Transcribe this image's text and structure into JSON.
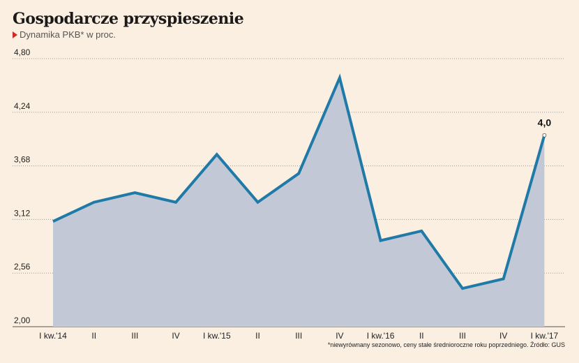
{
  "title": "Gospodarcze przyspieszenie",
  "subtitle": "Dynamika PKB* w proc.",
  "footnote": "*niewyrównany sezonowo, ceny stałe średnioroczne roku poprzedniego. Źródło: GUS",
  "colors": {
    "line": "#1f7aa8",
    "area": "#c3c8d6",
    "background": "#faefe1",
    "marker": "#d4252a"
  },
  "chart_data": {
    "type": "area",
    "categories": [
      "I kw.'14",
      "II",
      "III",
      "IV",
      "I kw.'15",
      "II",
      "III",
      "IV",
      "I kw.'16",
      "II",
      "III",
      "IV",
      "I kw.'17"
    ],
    "values": [
      3.1,
      3.3,
      3.4,
      3.3,
      3.8,
      3.3,
      3.6,
      4.6,
      2.9,
      3.0,
      2.4,
      2.5,
      4.0
    ],
    "yticks": [
      "4,80",
      "4,24",
      "3,68",
      "3,12",
      "2,56",
      "2,00"
    ],
    "ytick_values": [
      4.8,
      4.24,
      3.68,
      3.12,
      2.56,
      2.0
    ],
    "ylim": [
      2.0,
      4.8
    ],
    "annotation": "4,0",
    "grid": true
  }
}
